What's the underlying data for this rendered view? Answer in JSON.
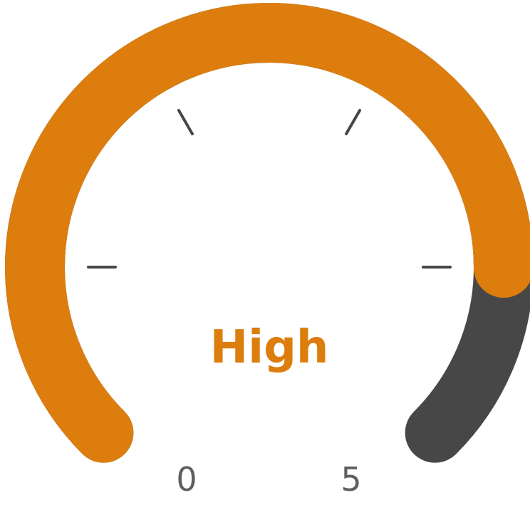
{
  "gauge": {
    "label": "High",
    "min_label": "0",
    "max_label": "5",
    "min": 0,
    "max": 5,
    "value": 4.17,
    "colors": {
      "fill": "#dc7d0e",
      "track": "#474747",
      "ticks": "#474747",
      "label": "#dc7d0e",
      "scale_labels": "#5f5f5f"
    }
  }
}
